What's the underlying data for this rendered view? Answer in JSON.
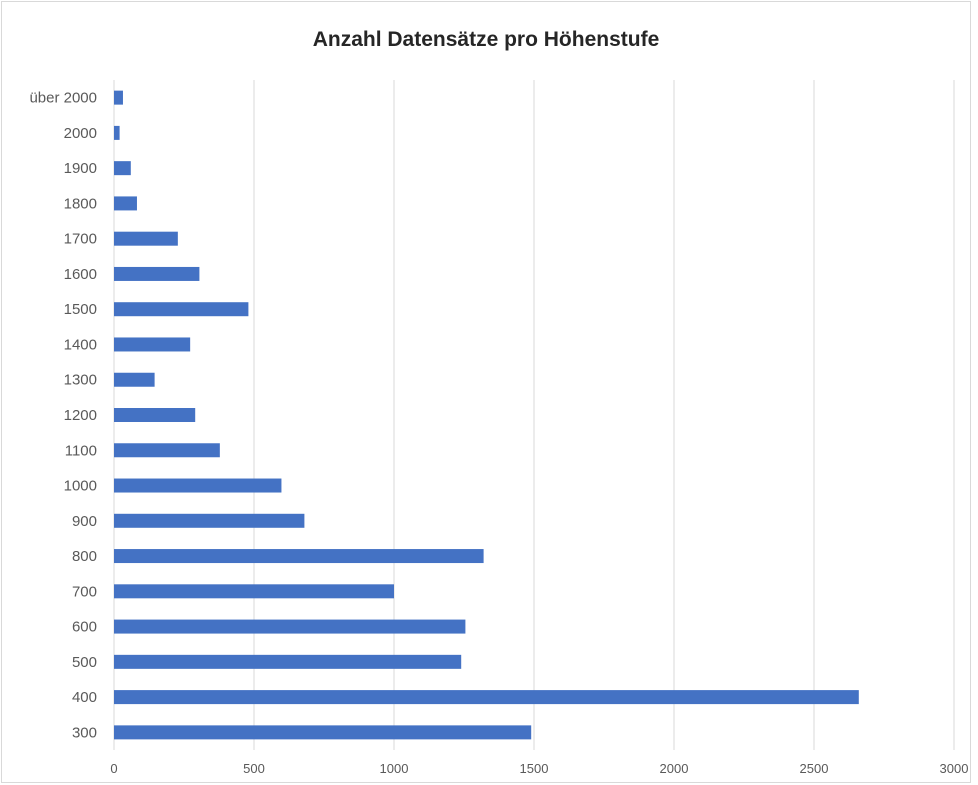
{
  "chart_data": {
    "type": "bar",
    "orientation": "horizontal",
    "title": "Anzahl Datensätze pro Höhenstufe",
    "xlabel": "",
    "ylabel": "",
    "categories": [
      "300",
      "400",
      "500",
      "600",
      "700",
      "800",
      "900",
      "1000",
      "1100",
      "1200",
      "1300",
      "1400",
      "1500",
      "1600",
      "1700",
      "1800",
      "1900",
      "2000",
      "über 2000"
    ],
    "values": [
      1490,
      2660,
      1240,
      1255,
      1000,
      1320,
      680,
      598,
      378,
      290,
      145,
      272,
      480,
      305,
      228,
      82,
      60,
      20,
      32
    ],
    "xlim": [
      0,
      3000
    ],
    "xticks": [
      "0",
      "500",
      "1000",
      "1500",
      "2000",
      "2500",
      "3000"
    ],
    "grid": "vertical",
    "legend": "none",
    "bar_color": "#4472C4",
    "grid_color": "#d9d9d9"
  }
}
